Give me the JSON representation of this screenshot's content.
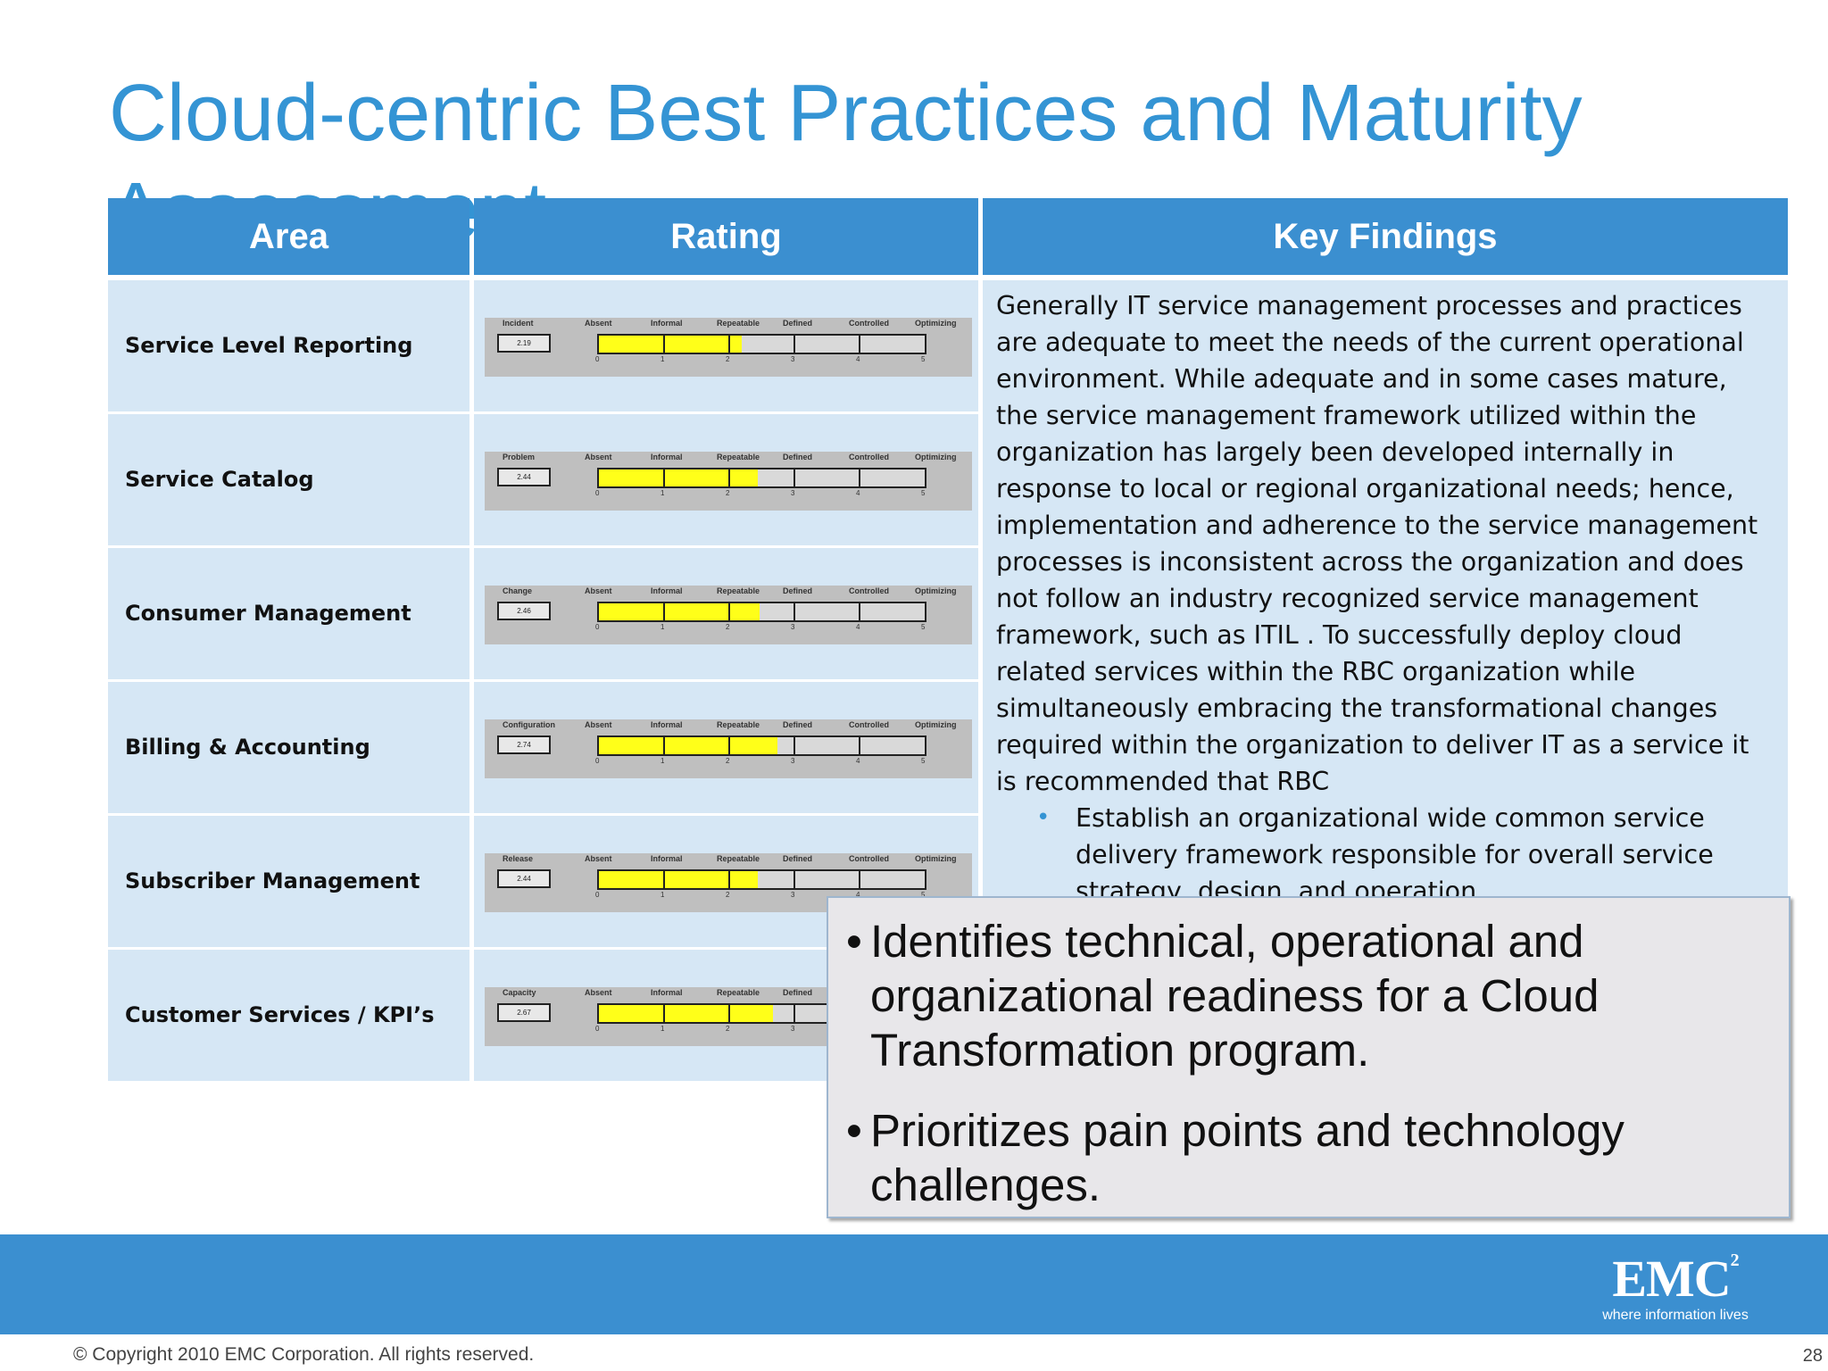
{
  "slide": {
    "title_line1": "Cloud-centric Best Practices and Maturity",
    "title_line2": "Assessment",
    "page_number": "28",
    "copyright": "© Copyright 2010 EMC Corporation. All rights reserved."
  },
  "table": {
    "headers": [
      "Area",
      "Rating",
      "Key Findings"
    ],
    "rows": [
      {
        "area": "Service Level Reporting",
        "process": "Incident",
        "score": "2.19",
        "value": 2.19
      },
      {
        "area": "Service Catalog",
        "process": "Problem",
        "score": "2.44",
        "value": 2.44
      },
      {
        "area": "Consumer Management",
        "process": "Change",
        "score": "2.46",
        "value": 2.46
      },
      {
        "area": "Billing & Accounting",
        "process": "Configuration",
        "score": "2.74",
        "value": 2.74
      },
      {
        "area": "Subscriber Management",
        "process": "Release",
        "score": "2.44",
        "value": 2.44
      },
      {
        "area": "Customer Services / KPI’s",
        "process": "Capacity",
        "score": "2.67",
        "value": 2.67
      }
    ],
    "scale_labels": [
      "Absent",
      "Informal",
      "Repeatable",
      "Defined",
      "Controlled",
      "Optimizing"
    ],
    "scale_numbers": [
      "0",
      "1",
      "2",
      "3",
      "4",
      "5"
    ],
    "scale_max": 5,
    "fill_color": "#ffff19",
    "findings_paragraph": "Generally IT service management processes and practices are adequate to meet the needs of the current operational environment. While adequate and in some cases mature, the service management framework utilized within the organization has largely been developed internally in response to local or regional organizational needs; hence, implementation and adherence to the service management processes is inconsistent across the organization and does not follow an industry recognized service management framework, such as ITIL . To successfully deploy cloud related services within the RBC organization while simultaneously embracing the transformational changes required within the organization to deliver IT as a service it is recommended that RBC",
    "findings_bullets": [
      "Establish an organizational wide common service delivery framework responsible for overall service strategy, design, and operation."
    ]
  },
  "callout": {
    "bullets": [
      "Identifies technical, operational and organizational readiness for a Cloud Transformation program.",
      "Prioritizes pain points and technology challenges."
    ]
  },
  "logo": {
    "mark": "EMC",
    "superscript": "2",
    "tagline": "where information lives"
  },
  "colors": {
    "title": "#3494d4",
    "header": "#3b8fd0",
    "cell": "#d6e7f5",
    "band": "#3b8fd0"
  }
}
